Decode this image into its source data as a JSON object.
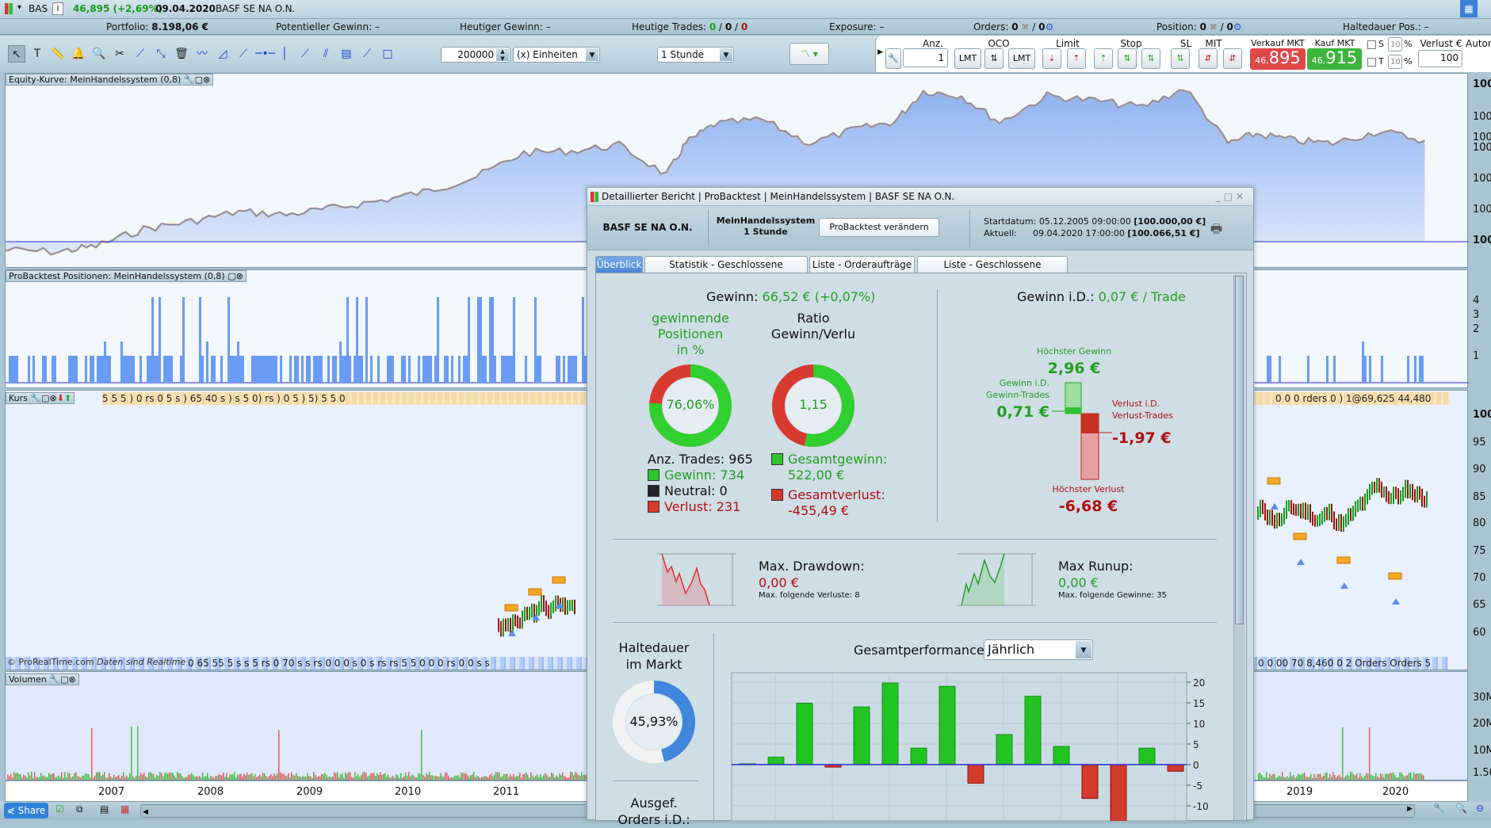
{
  "topbar": {
    "symbol": "BAS",
    "price_change": "46,895 (+2,69%)",
    "date": "09.04.2020",
    "instrument": "BASF SE NA O.N."
  },
  "infobar": {
    "portfolio_label": "Portfolio:",
    "portfolio_value": "8.198,06 €",
    "potential_label": "Potentieller Gewinn:",
    "potential_value": "–",
    "today_gain_label": "Heutiger Gewinn:",
    "today_gain_value": "–",
    "today_trades_label": "Heutige Trades:",
    "today_trades": [
      "0",
      "0",
      "0"
    ],
    "exposure_label": "Exposure:",
    "exposure_value": "–",
    "orders_label": "Orders:",
    "orders_a": "0",
    "orders_b": "0",
    "position_label": "Position:",
    "position_a": "0",
    "position_b": "0",
    "holding_label": "Haltedauer Pos.:",
    "holding_value": "–"
  },
  "toolbar": {
    "quantity": "200000",
    "units": "(x) Einheiten",
    "timeframe": "1 Stunde",
    "tools": [
      "cursor-icon",
      "text-icon",
      "ruler-icon",
      "alarm-bell-icon",
      "zoom-icon",
      "tools-icon",
      "line-icon",
      "point-line-icon",
      "trash-icon",
      "fibonacci-icon",
      "triangle-icon",
      "trendline-icon",
      "horizontal-line-icon",
      "vertical-line-icon",
      "ray-icon",
      "channel-icon",
      "grid-icon",
      "regression-icon",
      "rectangle-icon"
    ]
  },
  "order_panel": {
    "qty_label": "Anz.",
    "qty": "1",
    "oco_label": "OCO",
    "lmt": "LMT",
    "limit_label": "Limit",
    "stop_label": "Stop",
    "sl_label": "SL",
    "mit_label": "MIT",
    "sell_label": "Verkauf MKT",
    "sell_small": "46,",
    "sell_big": "895",
    "buy_label": "Kauf MKT",
    "buy_small": "46,",
    "buy_big": "915",
    "s_label": "S",
    "t_label": "T",
    "s_pct": "10",
    "t_pct": "10",
    "pct": "%",
    "loss_label": "Verlust €",
    "loss_value": "100",
    "auto_label": "Autom",
    "sell_color": "#e04848",
    "buy_color": "#3bb53b"
  },
  "panels": {
    "equity_title": "Equity-Kurve: MeinHandelssystem (0,8)",
    "equity_axis": [
      "100",
      "100",
      "100",
      "100",
      "100",
      "100",
      "100"
    ],
    "positions_title": "ProBacktest Positionen: MeinHandelssystem (0,8)",
    "positions_axis": [
      "4",
      "3",
      "2",
      "1"
    ],
    "price_title": "Kurs",
    "price_axis": [
      "100",
      "95",
      "90",
      "85",
      "80",
      "75",
      "70",
      "65",
      "60"
    ],
    "price_strip_left": "5  5  5   )  0    rs 0 5 s   )   65  40 s )   s  5  0)  rs  ) 0 5 )  5) 5  5 0",
    "price_strip_right": "0   0  0 rders 0 ) 1@69,625  44,480",
    "orders_strip_left": "0 65 55 5  s  s  5  rs 0 70 s s  rs 0 0  0  s 0  s  rs rs  5  5 0 0   0 rs 0 0  s s",
    "orders_strip_right": "0 0 00 70  8,460 0   2 Orders   Orders 5",
    "copyright": "© ProRealTime.com",
    "realtime": "Daten sind Realtime",
    "volume_title": "Volumen",
    "volume_axis": [
      "30M",
      "20M",
      "10M",
      "1.50"
    ],
    "years": [
      "2007",
      "2008",
      "2009",
      "2010",
      "2011",
      "2019",
      "2020"
    ]
  },
  "bottombar": {
    "share": "Share"
  },
  "dialog": {
    "title": "Detaillierter Bericht | ProBacktest | MeinHandelssystem | BASF SE NA O.N.",
    "instrument": "BASF SE NA O.N.",
    "system": "MeinHandelssystem",
    "system_tf": "1 Stunde",
    "modify_button": "ProBacktest verändern",
    "start_label": "Startdatum:",
    "start_value": "05.12.2005 09:00:00",
    "start_capital": "[100.000,00 €]",
    "current_label": "Aktuell:",
    "current_value": "09.04.2020 17:00:00",
    "current_capital": "[100.066,51 €]",
    "tabs": [
      "Überblick",
      "Statistik - Geschlossene Positionen",
      "Liste - Orderaufträge",
      "Liste - Geschlossene Positionen"
    ],
    "active_tab": 0,
    "gain_label": "Gewinn:",
    "gain_value": "66,52 € (+0,07%)",
    "gain_per_trade_label": "Gewinn i.D.:",
    "gain_per_trade_value": "0,07 € / Trade",
    "win_pct_title": [
      "gewinnende",
      "Positionen",
      "in %"
    ],
    "win_pct": "76,06%",
    "win_pct_value": 76.06,
    "ratio_title": [
      "Ratio",
      "Gewinn/Verlu"
    ],
    "ratio": "1,15",
    "ratio_fraction": 0.535,
    "trades_label": "Anz. Trades: 965",
    "wins": "Gewinn: 734",
    "neutral": "Neutral: 0",
    "losses": "Verlust: 231",
    "total_gain_label": "Gesamtgewinn:",
    "total_gain": "522,00 €",
    "total_loss_label": "Gesamtverlust:",
    "total_loss": "-455,49 €",
    "max_gain_label": "Höchster Gewinn",
    "max_gain": "2,96 €",
    "avg_gain_label": [
      "Gewinn i.D.",
      "Gewinn-Trades"
    ],
    "avg_gain": "0,71 €",
    "avg_loss_label": [
      "Verlust i.D.",
      "Verlust-Trades"
    ],
    "avg_loss": "-1,97 €",
    "max_loss_label": "Höchster Verlust",
    "max_loss": "-6,68 €",
    "drawdown_label": "Max. Drawdown:",
    "drawdown_value": "0,00 €",
    "drawdown_note": "Max. folgende Verluste: 8",
    "runup_label": "Max Runup:",
    "runup_value": "0,00 €",
    "runup_note": "Max. folgende Gewinne: 35",
    "holding_title": [
      "Haltedauer",
      "im Markt"
    ],
    "holding_pct": "45,93%",
    "holding_value": 45.93,
    "orders_title": [
      "Ausgef.",
      "Orders i.D.:"
    ],
    "perf_label": "Gesamtperformance",
    "perf_period": "Jährlich"
  },
  "chart_data": {
    "type": "bar",
    "title": "Gesamtperformance",
    "values": [
      0.2,
      1.8,
      14.9,
      -0.6,
      14.0,
      19.8,
      4.0,
      19.0,
      -4.5,
      7.3,
      16.6,
      4.4,
      -8.2,
      -14.0,
      4.0,
      -1.6
    ],
    "yticks": [
      20,
      15,
      10,
      5,
      0,
      -5,
      -10
    ],
    "ylim": [
      -14,
      22
    ],
    "positive_color": "#22c422",
    "negative_color": "#d23a2a",
    "zero_line_color": "#2a2ad0",
    "grid": true
  }
}
